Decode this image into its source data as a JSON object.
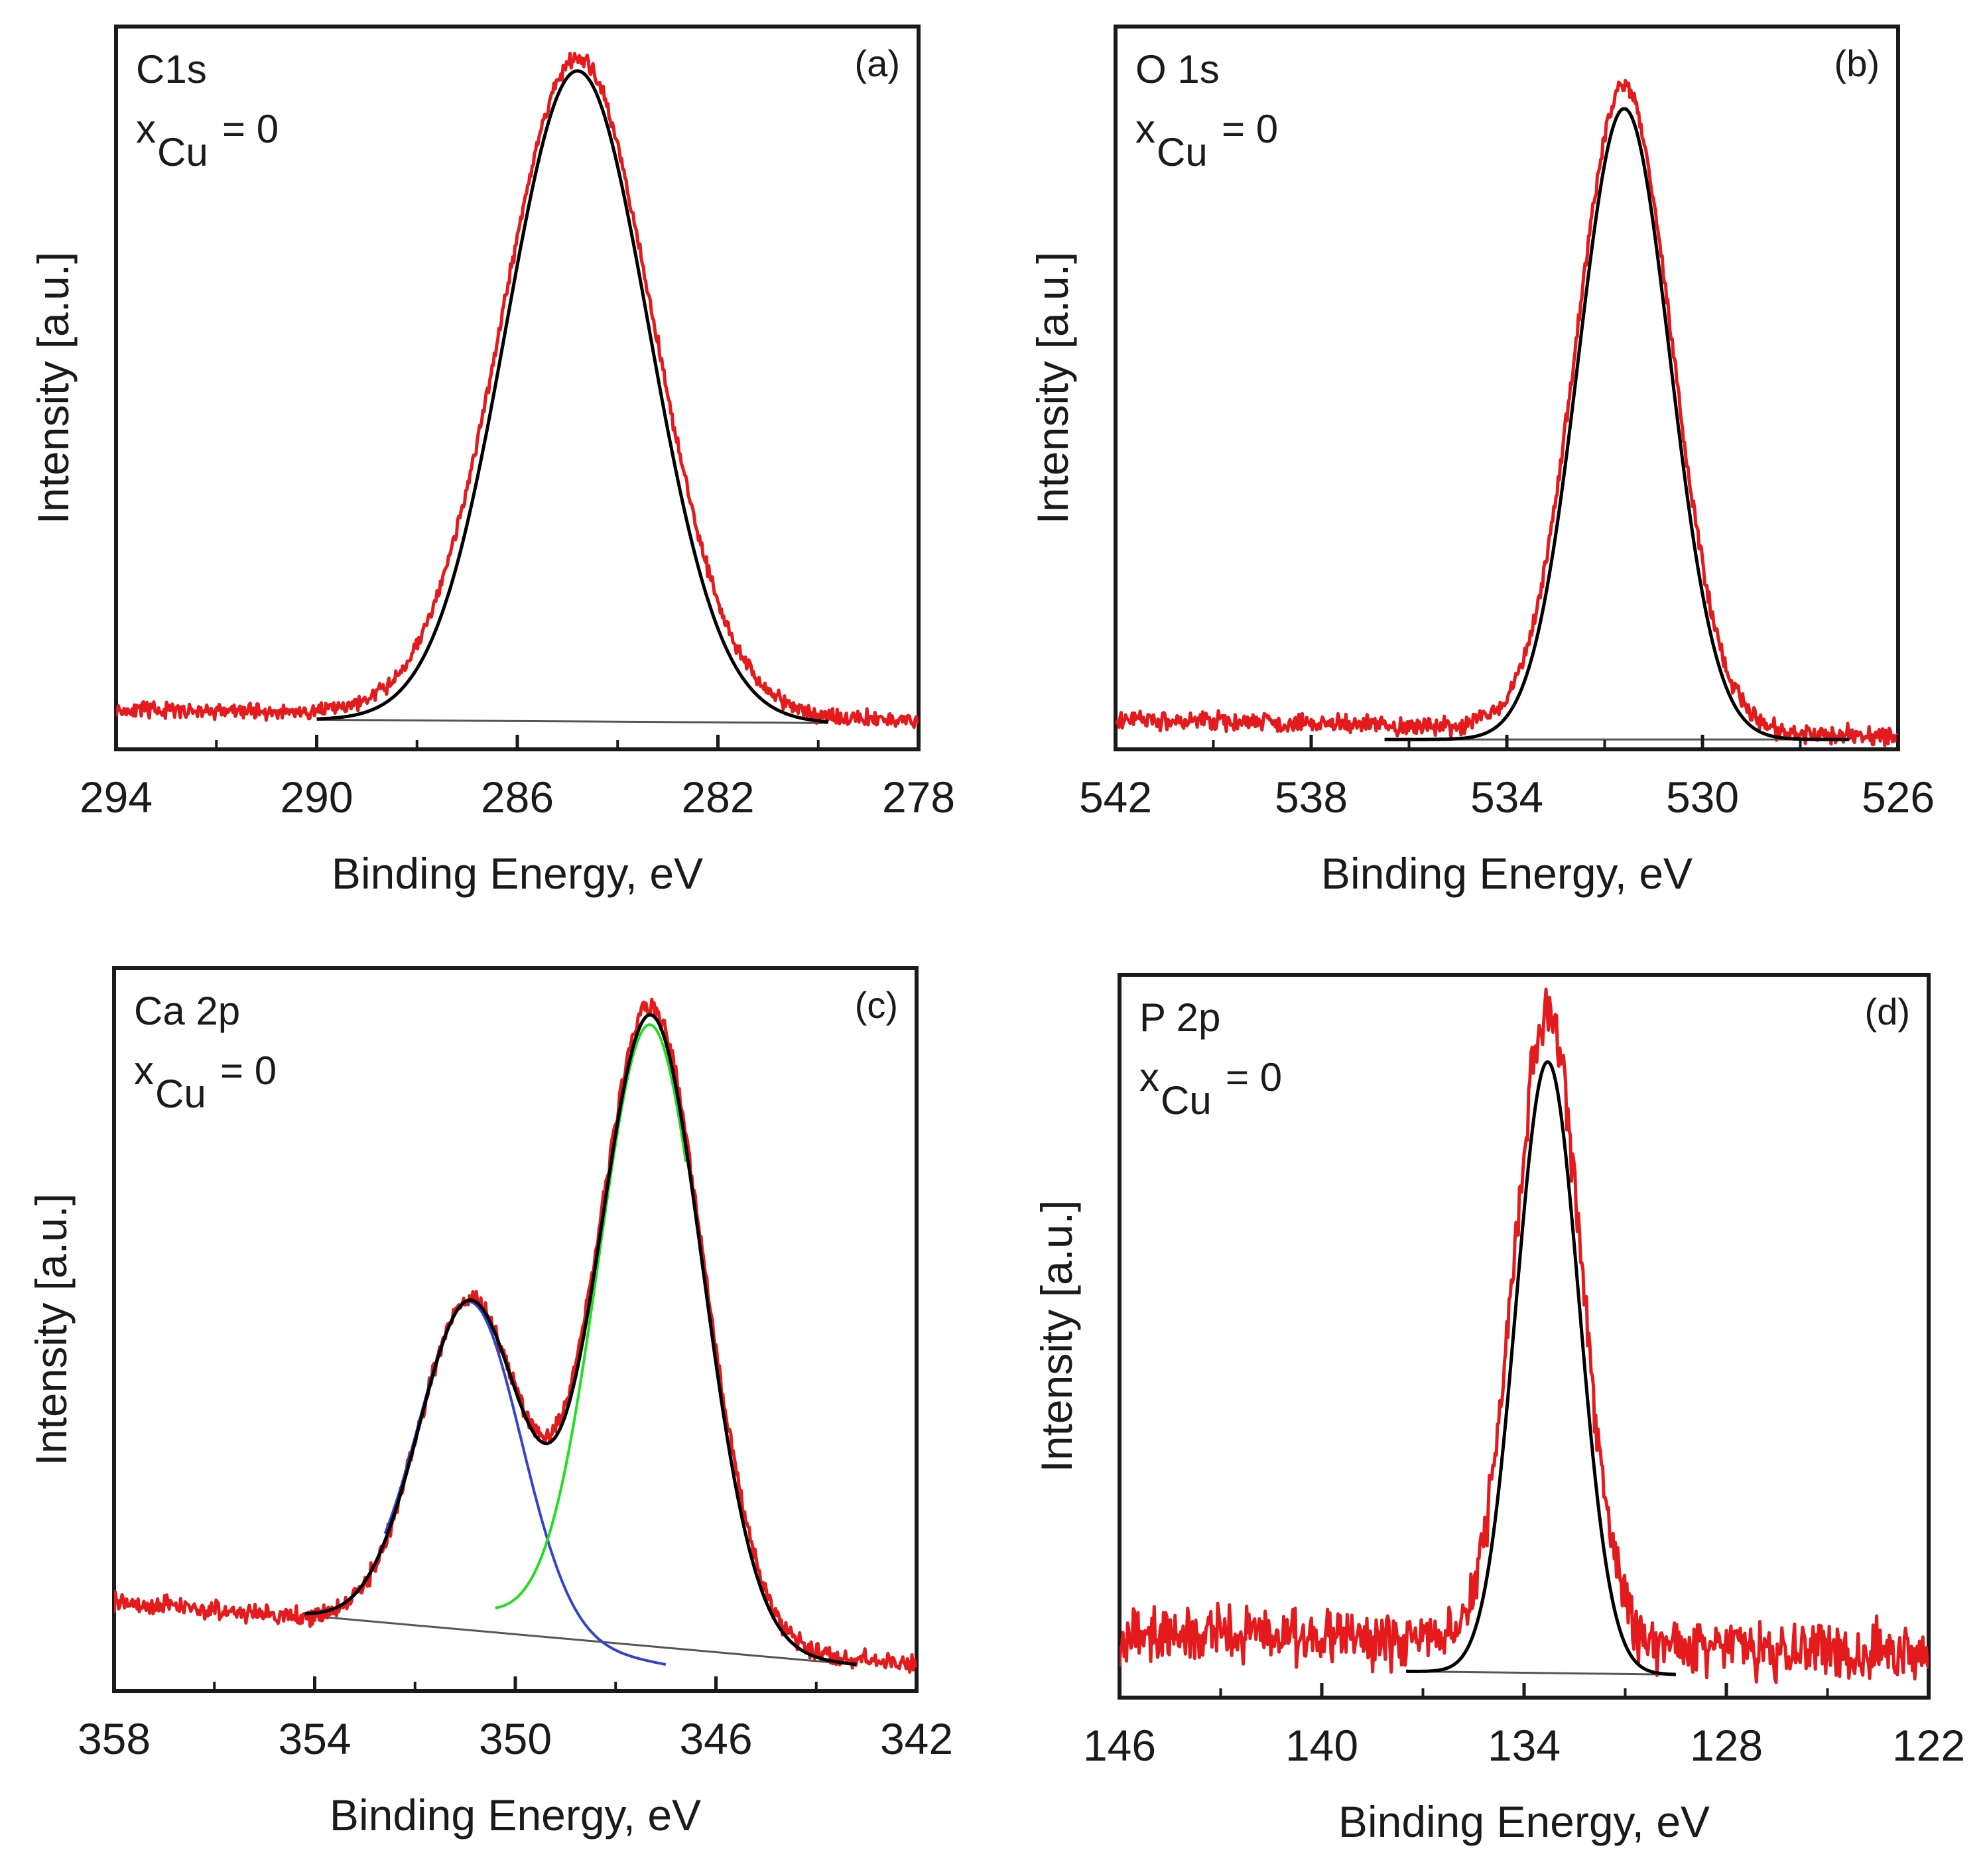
{
  "chart_data": [
    {
      "type": "line",
      "panel_label": "(a)",
      "annotation": "C1s",
      "x_symbol": "x",
      "x_subscript": "Cu",
      "x_value": "= 0",
      "xlabel": "Binding Energy, eV",
      "ylabel": "Intensity [a.u.]",
      "xlim": [
        294,
        278
      ],
      "x_ticks": [
        294,
        290,
        286,
        282,
        278
      ],
      "x_minor_ticks": [
        292,
        288,
        284,
        280
      ],
      "ylim": [
        0,
        1.1
      ],
      "baseline": {
        "from": 290.0,
        "to": 279.8,
        "y_start": 0.045,
        "y_end": 0.04
      },
      "series": [
        {
          "role": "measured",
          "color": "#e41a1c",
          "x_start": 294,
          "x_end": 278,
          "peaks": [
            {
              "center": 284.8,
              "height": 1.0,
              "fwhm": 3.55
            }
          ],
          "noise": 0.005,
          "baseline": {
            "y_start": 0.06,
            "y_end": 0.045
          },
          "seed": 11
        },
        {
          "role": "fit",
          "color": "#000000",
          "x_start": 290.0,
          "x_end": 279.8,
          "peaks": [
            {
              "center": 284.8,
              "height": 0.99,
              "fwhm": 3.35
            }
          ],
          "noise": 0,
          "baseline": {
            "y_start": 0.045,
            "y_end": 0.04
          },
          "seed": 0
        }
      ]
    },
    {
      "type": "line",
      "panel_label": "(b)",
      "annotation": "O 1s",
      "x_symbol": "x",
      "x_subscript": "Cu",
      "x_value": "= 0",
      "xlabel": "Binding Energy, eV",
      "ylabel": "Intensity [a.u.]",
      "xlim": [
        542,
        526
      ],
      "x_ticks": [
        542,
        538,
        534,
        530,
        526
      ],
      "x_minor_ticks": [
        540,
        536,
        532,
        528
      ],
      "ylim": [
        0,
        1.1
      ],
      "baseline": {
        "from": 536.5,
        "to": 527.0,
        "y_start": 0.015,
        "y_end": 0.015
      },
      "series": [
        {
          "role": "measured",
          "color": "#e41a1c",
          "x_start": 542,
          "x_end": 526,
          "peaks": [
            {
              "center": 531.6,
              "height": 0.98,
              "fwhm": 2.3
            }
          ],
          "noise": 0.006,
          "baseline": {
            "y_start": 0.045,
            "y_end": 0.02
          },
          "seed": 23
        },
        {
          "role": "fit",
          "color": "#000000",
          "x_start": 536.5,
          "x_end": 527.0,
          "peaks": [
            {
              "center": 531.6,
              "height": 0.96,
              "fwhm": 2.2
            }
          ],
          "noise": 0,
          "baseline": {
            "y_start": 0.015,
            "y_end": 0.015
          },
          "seed": 0
        }
      ]
    },
    {
      "type": "line",
      "panel_label": "(c)",
      "annotation": "Ca 2p",
      "x_symbol": "x",
      "x_subscript": "Cu",
      "x_value": "= 0",
      "xlabel": "Binding Energy, eV",
      "ylabel": "Intensity [a.u.]",
      "xlim": [
        358,
        342
      ],
      "x_ticks": [
        358,
        354,
        350,
        346,
        342
      ],
      "x_minor_ticks": [
        356,
        352,
        348,
        344
      ],
      "ylim": [
        0,
        1.1
      ],
      "baseline": {
        "from": 354.2,
        "to": 343.2,
        "y_start": 0.115,
        "y_end": 0.04
      },
      "series": [
        {
          "role": "measured",
          "color": "#e41a1c",
          "x_start": 358,
          "x_end": 342,
          "peaks": [
            {
              "center": 350.9,
              "height": 0.5,
              "fwhm": 2.4
            },
            {
              "center": 347.3,
              "height": 0.97,
              "fwhm": 2.5
            }
          ],
          "noise": 0.006,
          "baseline": {
            "y_start": 0.135,
            "y_end": 0.04
          },
          "seed": 37
        },
        {
          "role": "fit",
          "color": "#000000",
          "x_start": 354.2,
          "x_end": 343.2,
          "peaks": [
            {
              "center": 350.9,
              "height": 0.5,
              "fwhm": 2.4
            },
            {
              "center": 347.3,
              "height": 0.96,
              "fwhm": 2.45
            }
          ],
          "noise": 0,
          "baseline": {
            "y_start": 0.115,
            "y_end": 0.04
          },
          "seed": 0
        },
        {
          "role": "component",
          "color": "#3344cc",
          "x_start": 352.6,
          "x_end": 347.0,
          "peaks": [
            {
              "center": 350.9,
              "height": 0.5,
              "fwhm": 2.4
            }
          ],
          "noise": 0,
          "baseline": {
            "y_start": 0.115,
            "y_end": 0.04
          },
          "seed": 0
        },
        {
          "role": "component",
          "color": "#22dd22",
          "x_start": 350.4,
          "x_end": 346.6,
          "peaks": [
            {
              "center": 347.3,
              "height": 0.96,
              "fwhm": 2.45
            }
          ],
          "noise": 0,
          "baseline": {
            "y_start": 0.115,
            "y_end": 0.04
          },
          "seed": 0
        }
      ]
    },
    {
      "type": "line",
      "panel_label": "(d)",
      "annotation": "P 2p",
      "x_symbol": "x",
      "x_subscript": "Cu",
      "x_value": "= 0",
      "xlabel": "Binding Energy, eV",
      "ylabel": "Intensity [a.u.]",
      "xlim": [
        146,
        122
      ],
      "x_ticks": [
        146,
        140,
        134,
        128,
        122
      ],
      "x_minor_ticks": [
        143,
        137,
        131,
        125
      ],
      "ylim": [
        0,
        1.1
      ],
      "baseline": {
        "from": 137.5,
        "to": 129.5,
        "y_start": 0.04,
        "y_end": 0.035
      },
      "series": [
        {
          "role": "measured",
          "color": "#e41a1c",
          "x_start": 146,
          "x_end": 122,
          "peaks": [
            {
              "center": 133.3,
              "height": 0.96,
              "fwhm": 2.35
            }
          ],
          "noise": 0.018,
          "baseline": {
            "y_start": 0.1,
            "y_end": 0.07
          },
          "seed": 53
        },
        {
          "role": "fit",
          "color": "#000000",
          "x_start": 137.5,
          "x_end": 129.5,
          "peaks": [
            {
              "center": 133.3,
              "height": 0.93,
              "fwhm": 2.2
            }
          ],
          "noise": 0,
          "baseline": {
            "y_start": 0.04,
            "y_end": 0.035
          },
          "seed": 0
        }
      ]
    }
  ]
}
